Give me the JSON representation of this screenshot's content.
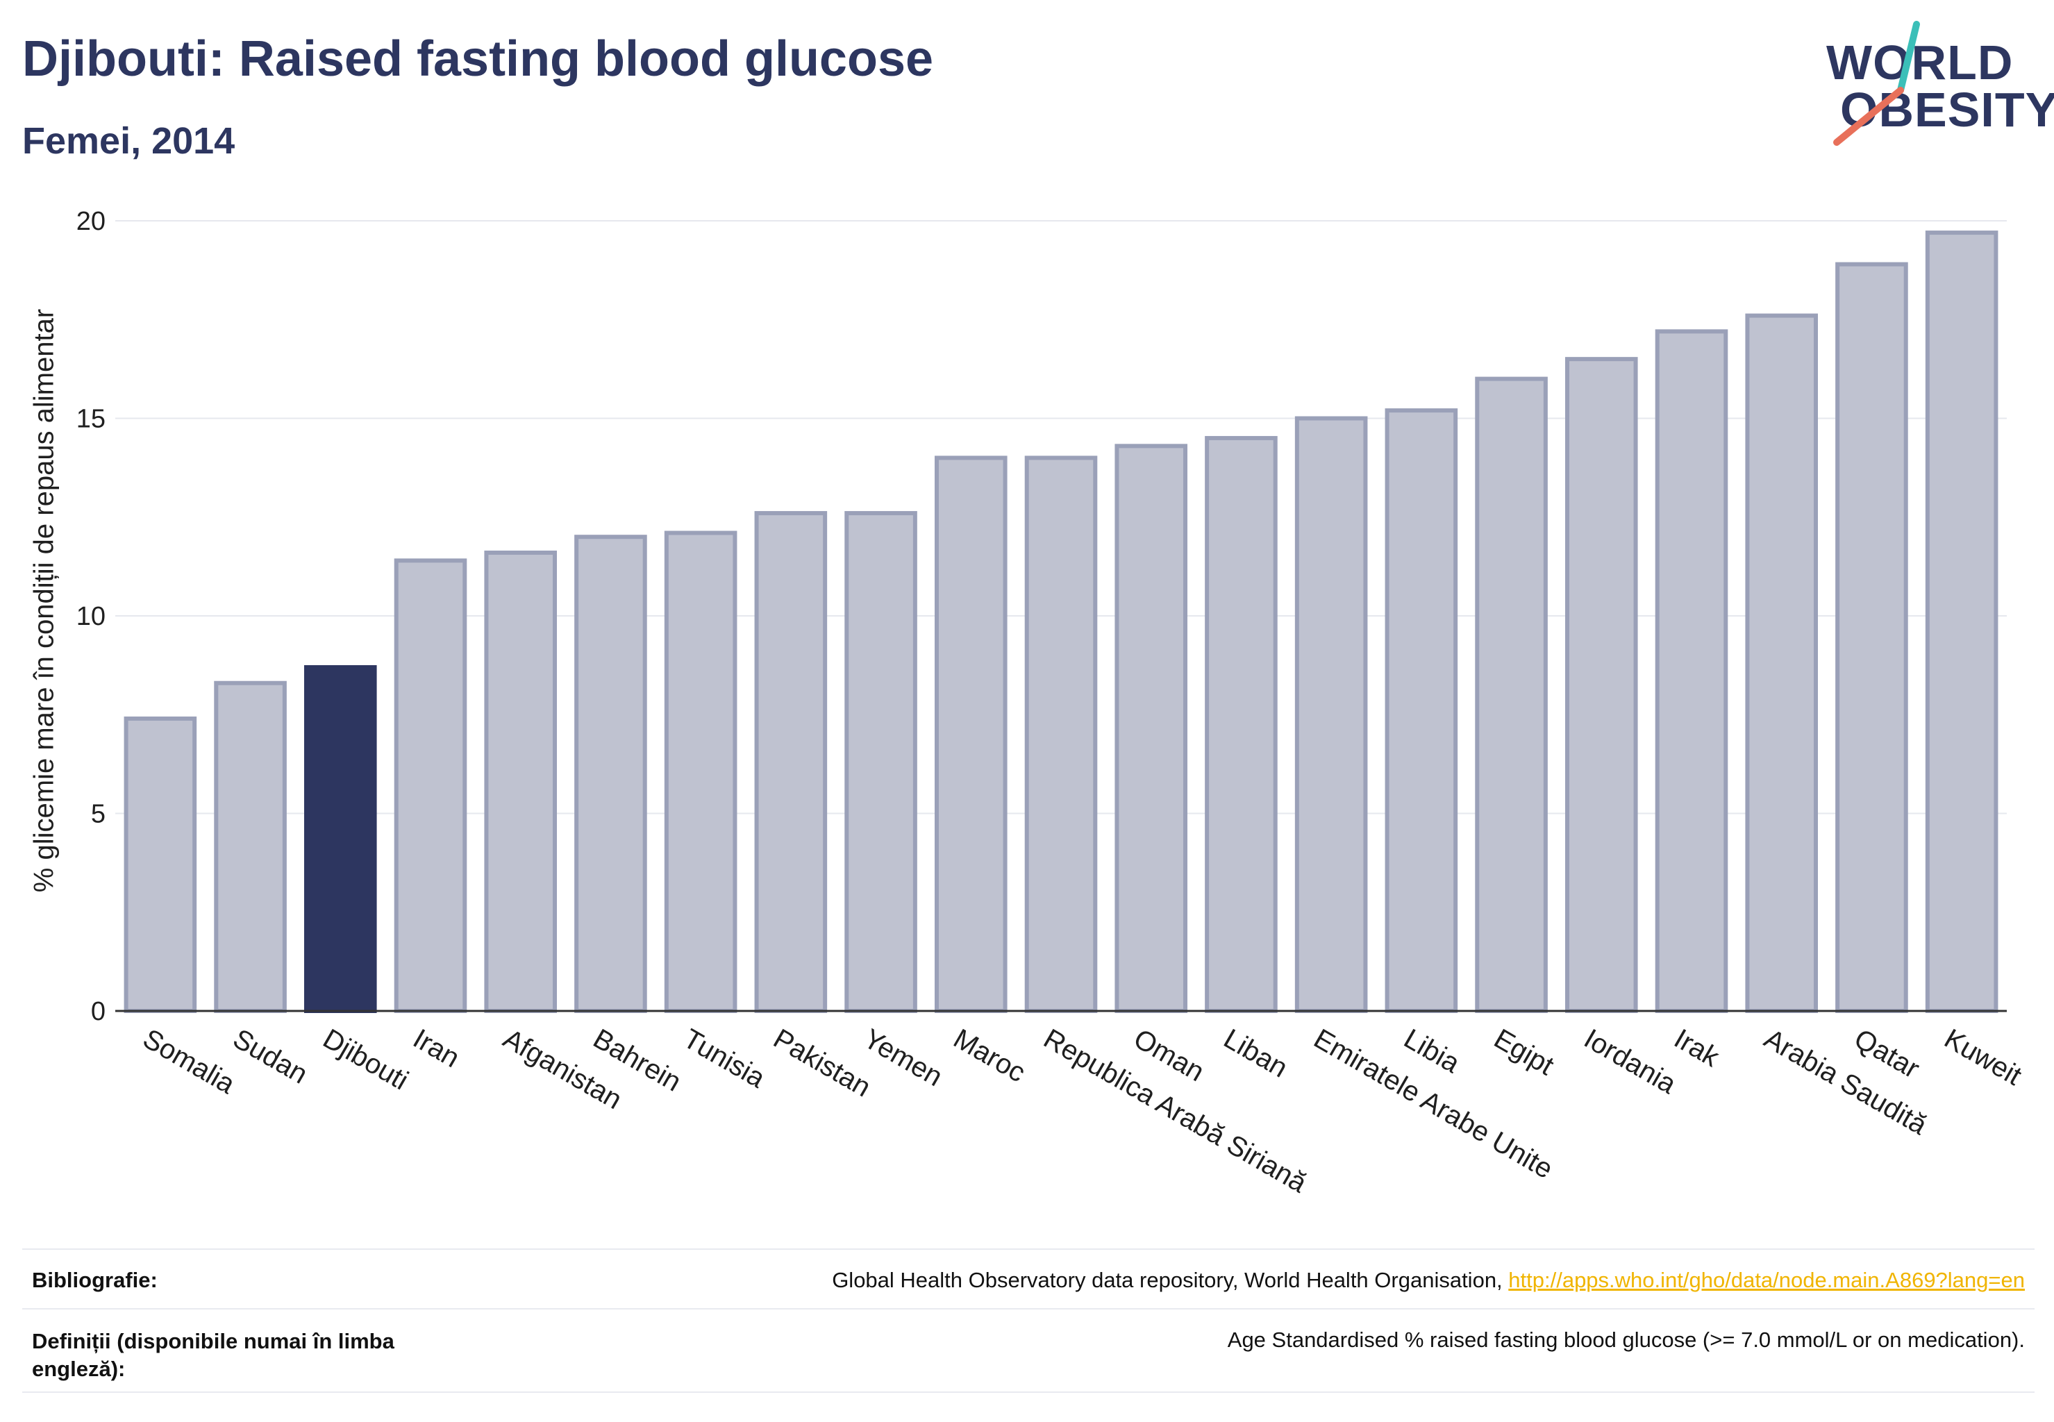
{
  "header": {
    "title": "Djibouti: Raised fasting blood glucose",
    "subtitle": "Femei, 2014"
  },
  "logo": {
    "line1": "WORLD",
    "line2": "OBESITY",
    "slash_colors": [
      "#3bbfb8",
      "#e8705a"
    ]
  },
  "chart_data": {
    "type": "bar",
    "ylabel": "% glicemie mare în condiții de repaus alimentar",
    "xlabel": "",
    "ylim": [
      0,
      20
    ],
    "yticks": [
      0,
      5,
      10,
      15,
      20
    ],
    "grid": true,
    "highlight": "Djibouti",
    "colors": {
      "bar": "#bfc2d0",
      "bar_edge": "#9aa0b8",
      "highlight": "#2d3660"
    },
    "categories": [
      "Somalia",
      "Sudan",
      "Djibouti",
      "Iran",
      "Afganistan",
      "Bahrein",
      "Tunisia",
      "Pakistan",
      "Yemen",
      "Maroc",
      "Republica Arabă Siriană",
      "Oman",
      "Liban",
      "Emiratele Arabe Unite",
      "Libia",
      "Egipt",
      "Iordania",
      "Irak",
      "Arabia Saudită",
      "Qatar",
      "Kuweit"
    ],
    "values": [
      7.4,
      8.3,
      8.7,
      11.4,
      11.6,
      12.0,
      12.1,
      12.6,
      12.6,
      14.0,
      14.0,
      14.3,
      14.5,
      15.0,
      15.2,
      16.0,
      16.5,
      17.2,
      17.6,
      18.9,
      19.7
    ]
  },
  "footer": {
    "bib_label": "Bibliografie:",
    "bib_text": "Global Health Observatory data repository, World Health Organisation, ",
    "bib_link": "http://apps.who.int/gho/data/node.main.A869?lang=en",
    "def_label": "Definiții (disponibile numai în limba engleză):",
    "def_text": "Age Standardised % raised fasting blood glucose (>= 7.0 mmol/L or on medication)."
  }
}
